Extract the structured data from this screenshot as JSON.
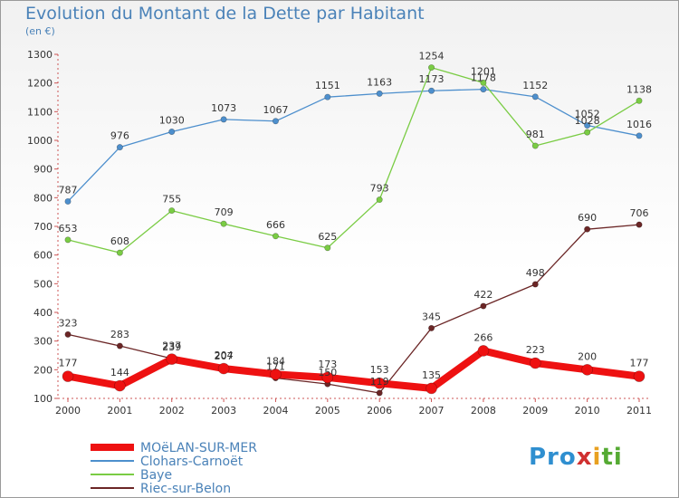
{
  "title": "Evolution du Montant de la Dette par Habitant",
  "unit": "(en €)",
  "colors": {
    "MOëLAN-SUR-MER": "#ee1111",
    "Clohars-Carnoët": "#4d8fcd",
    "Baye": "#7acc44",
    "Riec-sur-Belon": "#6b2626",
    "title": "#4a82b8"
  },
  "chart_data": {
    "type": "line",
    "title": "Evolution du Montant de la Dette par Habitant",
    "ylabel": "(en €)",
    "xlabel": "",
    "ylim": [
      100,
      1300
    ],
    "yticks": [
      100,
      200,
      300,
      400,
      500,
      600,
      700,
      800,
      900,
      1000,
      1100,
      1200,
      1300
    ],
    "x": [
      "2000",
      "2001",
      "2002",
      "2003",
      "2004",
      "2005",
      "2006",
      "2007",
      "2008",
      "2009",
      "2010",
      "2011"
    ],
    "grid": false,
    "legend_position": "bottom-left",
    "series": [
      {
        "name": "MOëLAN-SUR-MER",
        "values": [
          177,
          144,
          237,
          204,
          184,
          173,
          153,
          135,
          266,
          223,
          200,
          177
        ]
      },
      {
        "name": "Clohars-Carnoët",
        "values": [
          787,
          976,
          1030,
          1073,
          1067,
          1151,
          1163,
          1173,
          1178,
          1152,
          1052,
          1016
        ]
      },
      {
        "name": "Baye",
        "values": [
          653,
          608,
          755,
          709,
          666,
          625,
          793,
          1254,
          1201,
          981,
          1028,
          1138
        ]
      },
      {
        "name": "Riec-sur-Belon",
        "values": [
          323,
          283,
          239,
          207,
          171,
          150,
          119,
          345,
          422,
          498,
          690,
          706
        ]
      }
    ]
  },
  "logo": {
    "p1": "Pro",
    "p2": "x",
    "p3": "i",
    "p4": "ti"
  }
}
